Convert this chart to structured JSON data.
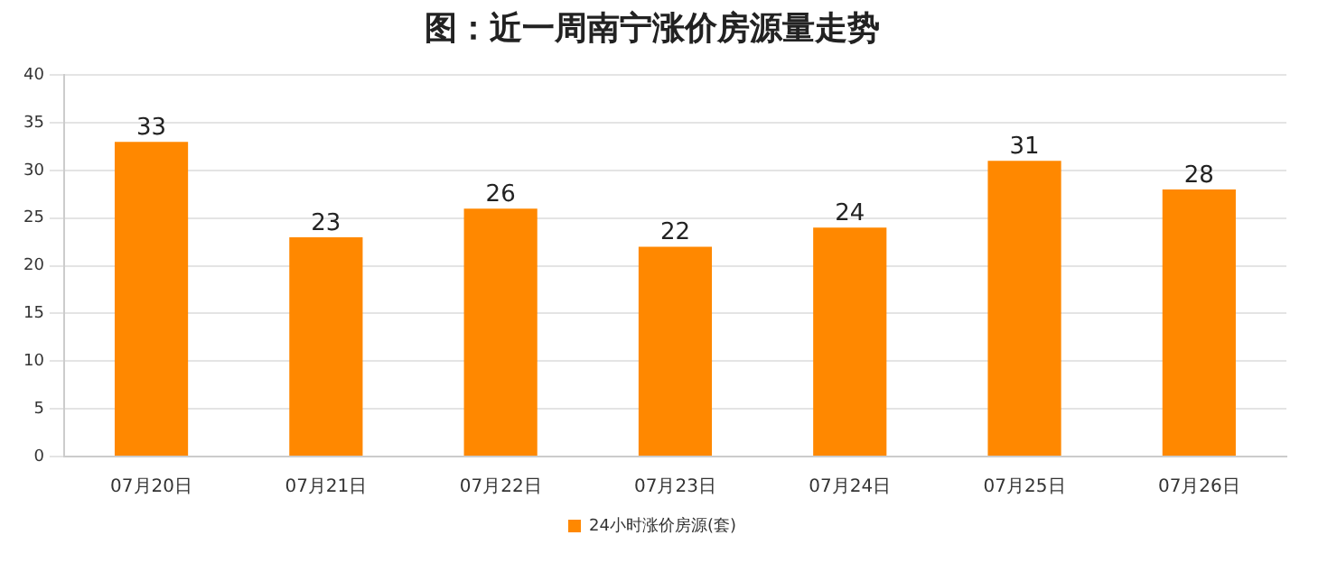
{
  "chart_data": {
    "type": "bar",
    "title": "图：近一周南宁涨价房源量走势",
    "categories": [
      "07月20日",
      "07月21日",
      "07月22日",
      "07月23日",
      "07月24日",
      "07月25日",
      "07月26日"
    ],
    "series": [
      {
        "name": "24小时涨价房源(套)",
        "color": "#ff8800",
        "values": [
          33,
          23,
          26,
          22,
          24,
          31,
          28
        ]
      }
    ],
    "ylim": [
      0,
      40
    ],
    "yticks": [
      0,
      5,
      10,
      15,
      20,
      25,
      30,
      35,
      40
    ],
    "grid": "y",
    "legend": "bottom",
    "data_labels": true
  }
}
